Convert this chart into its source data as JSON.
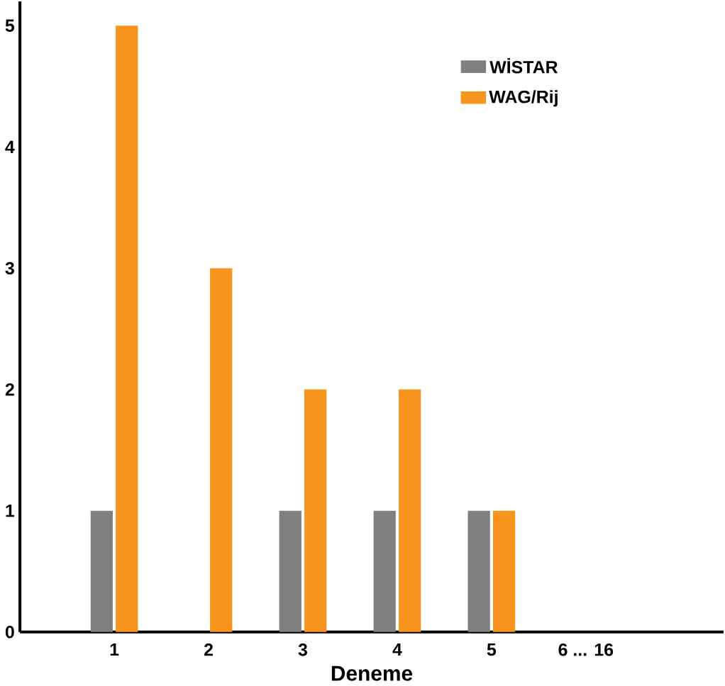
{
  "chart_data": {
    "type": "bar",
    "xlabel": "Deneme",
    "categories": [
      "1",
      "2",
      "3",
      "4",
      "5",
      "6   ...   16"
    ],
    "series": [
      {
        "name": "WİSTAR",
        "color": "#808080",
        "values": [
          1,
          0,
          1,
          1,
          1,
          0
        ]
      },
      {
        "name": "WAG/Rij",
        "color": "#f7941d",
        "values": [
          5,
          3,
          2,
          2,
          1,
          0
        ]
      }
    ],
    "ylim": [
      0,
      5.2
    ],
    "yticks": [
      0,
      1,
      2,
      3,
      4,
      5
    ],
    "legend": "top right",
    "grid": false
  }
}
